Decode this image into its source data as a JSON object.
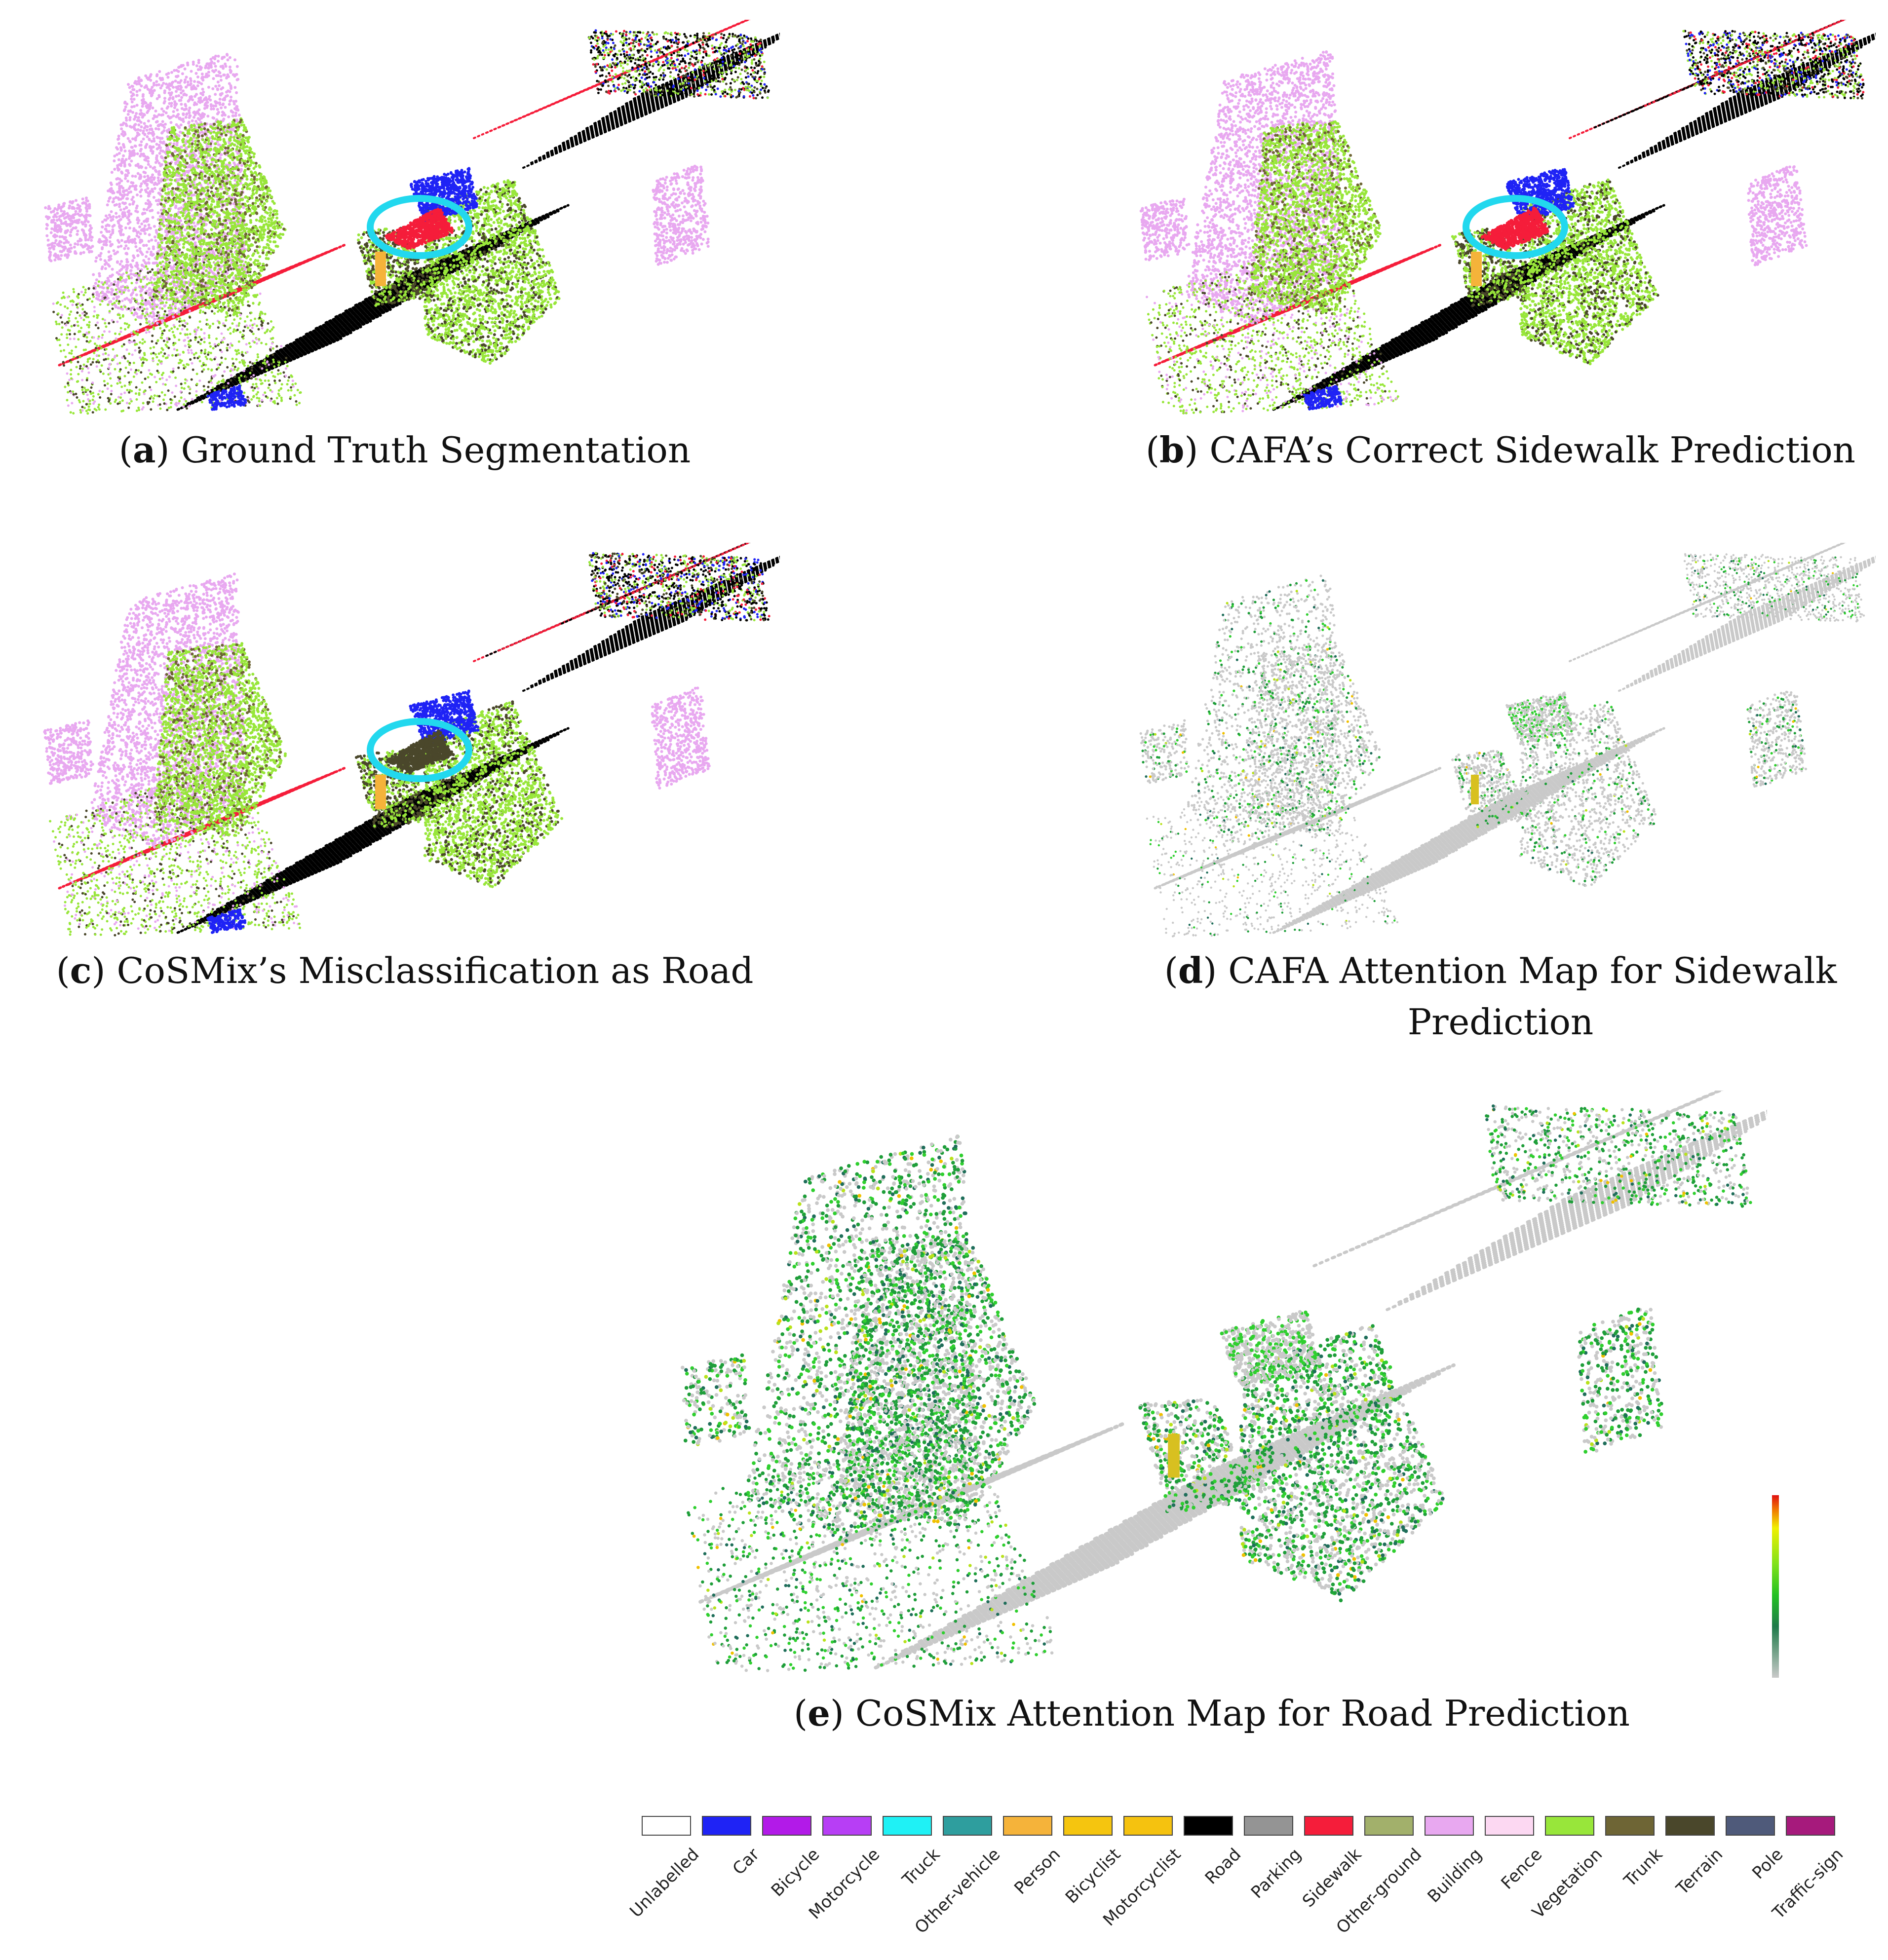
{
  "panels": [
    {
      "id": "a",
      "letter": "a",
      "caption": "Ground Truth Segmentation",
      "style": "labels",
      "variant": "gt",
      "circle": true
    },
    {
      "id": "b",
      "letter": "b",
      "caption": "CAFA’s Correct Sidewalk Prediction",
      "style": "labels",
      "variant": "cafa",
      "circle": true
    },
    {
      "id": "c",
      "letter": "c",
      "caption": "CoSMix’s Misclassification as Road",
      "style": "labels",
      "variant": "cosmix",
      "circle": true
    },
    {
      "id": "d",
      "letter": "d",
      "caption_line1": "CAFA Attention Map for Sidewalk",
      "caption_line2": "Prediction",
      "style": "attention-light"
    },
    {
      "id": "e",
      "letter": "e",
      "caption": "CoSMix Attention Map for Road Prediction",
      "style": "attention-heavy"
    }
  ],
  "legend": [
    {
      "label": "Unlabelled",
      "color": "#ffffff"
    },
    {
      "label": "Car",
      "color": "#1f23f5"
    },
    {
      "label": "Bicycle",
      "color": "#b21ae8"
    },
    {
      "label": "Motorcycle",
      "color": "#b73ef5"
    },
    {
      "label": "Truck",
      "color": "#1ff1f5"
    },
    {
      "label": "Other-vehicle",
      "color": "#2e9e9e"
    },
    {
      "label": "Person",
      "color": "#f5b33a"
    },
    {
      "label": "Bicyclist",
      "color": "#f5c50f"
    },
    {
      "label": "Motorcyclist",
      "color": "#f5c20f"
    },
    {
      "label": "Road",
      "color": "#000000"
    },
    {
      "label": "Parking",
      "color": "#949494"
    },
    {
      "label": "Sidewalk",
      "color": "#f51d3a"
    },
    {
      "label": "Other-ground",
      "color": "#a2b06b"
    },
    {
      "label": "Building",
      "color": "#e8a8f0"
    },
    {
      "label": "Fence",
      "color": "#fcd8f2"
    },
    {
      "label": "Vegetation",
      "color": "#98e63a"
    },
    {
      "label": "Trunk",
      "color": "#6e6535"
    },
    {
      "label": "Terrain",
      "color": "#4a472b"
    },
    {
      "label": "Pole",
      "color": "#4f5a7a"
    },
    {
      "label": "Traffic-sign",
      "color": "#a61a7c"
    }
  ],
  "colorbar": {
    "colors": [
      "#c9c9c9",
      "#1f7a4a",
      "#22c022",
      "#7fe11b",
      "#f0f000",
      "#f07800",
      "#e01010"
    ]
  }
}
